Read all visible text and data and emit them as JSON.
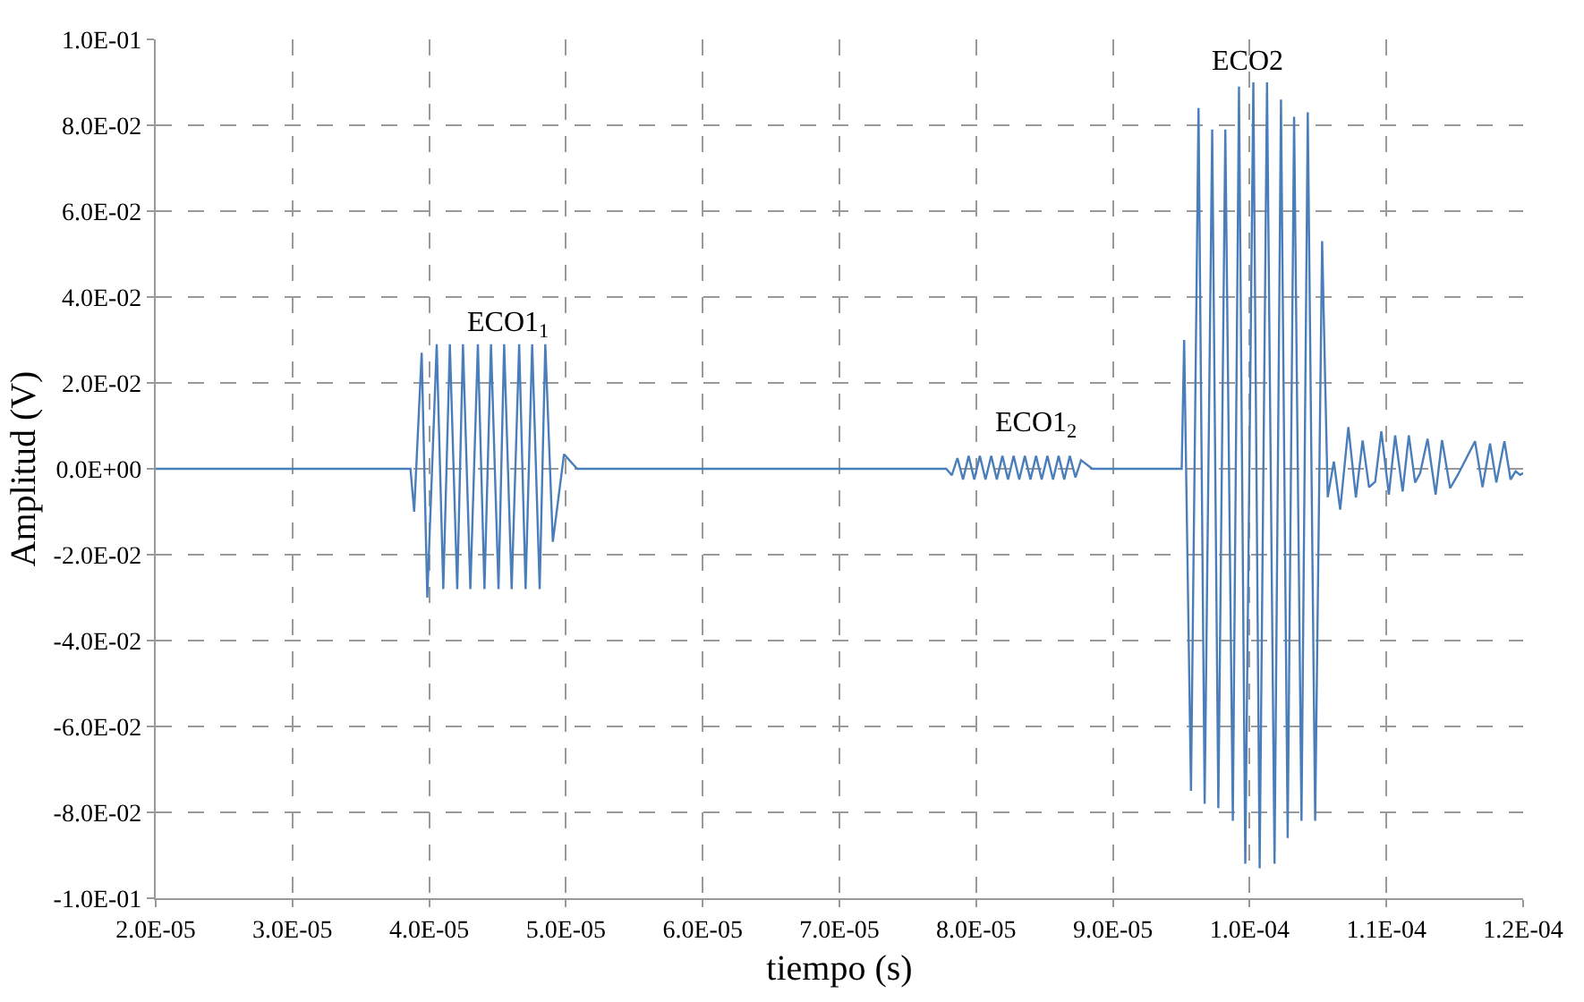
{
  "chart_data": {
    "type": "line",
    "xlabel": "tiempo (s)",
    "ylabel": "Amplitud (V)",
    "xlim": [
      2e-05,
      0.00012
    ],
    "xticks": [
      {
        "value": 2e-05,
        "label": "2.0E-05"
      },
      {
        "value": 3e-05,
        "label": "3.0E-05"
      },
      {
        "value": 4e-05,
        "label": "4.0E-05"
      },
      {
        "value": 5e-05,
        "label": "5.0E-05"
      },
      {
        "value": 6e-05,
        "label": "6.0E-05"
      },
      {
        "value": 7e-05,
        "label": "7.0E-05"
      },
      {
        "value": 8e-05,
        "label": "8.0E-05"
      },
      {
        "value": 9e-05,
        "label": "9.0E-05"
      },
      {
        "value": 0.0001,
        "label": "1.0E-04"
      },
      {
        "value": 0.00011,
        "label": "1.1E-04"
      },
      {
        "value": 0.00012,
        "label": "1.2E-04"
      }
    ],
    "ylim": [
      -0.1,
      0.1
    ],
    "yticks": [
      {
        "value": -0.1,
        "label": "-1.0E-01"
      },
      {
        "value": -0.08,
        "label": "-8.0E-02"
      },
      {
        "value": -0.06,
        "label": "-6.0E-02"
      },
      {
        "value": -0.04,
        "label": "-4.0E-02"
      },
      {
        "value": -0.02,
        "label": "-2.0E-02"
      },
      {
        "value": 0,
        "label": "0.0E+00"
      },
      {
        "value": 0.02,
        "label": "2.0E-02"
      },
      {
        "value": 0.04,
        "label": "4.0E-02"
      },
      {
        "value": 0.06,
        "label": "6.0E-02"
      },
      {
        "value": 0.08,
        "label": "8.0E-02"
      },
      {
        "value": 0.1,
        "label": "1.0E-01"
      }
    ],
    "grid": true,
    "marker": "none",
    "line_style": "solid",
    "annotations": [
      "ECO1$_{1}$",
      "ECO1$_{2}$",
      "ECO2"
    ],
    "series": [
      {
        "color": "#4a7ebb",
        "x": [
          2e-05,
          3.863e-05,
          3.89e-05,
          3.945e-05,
          3.986e-05,
          4.055e-05,
          4.103e-05,
          4.151e-05,
          4.205e-05,
          4.247e-05,
          4.301e-05,
          4.356e-05,
          4.404e-05,
          4.452e-05,
          4.507e-05,
          4.548e-05,
          4.603e-05,
          4.658e-05,
          4.705e-05,
          4.753e-05,
          4.808e-05,
          4.849e-05,
          4.904e-05,
          4.986e-05,
          5.082e-05,
          7.781e-05,
          7.822e-05,
          7.863e-05,
          7.904e-05,
          7.945e-05,
          7.986e-05,
          8.027e-05,
          8.068e-05,
          8.11e-05,
          8.151e-05,
          8.192e-05,
          8.233e-05,
          8.274e-05,
          8.315e-05,
          8.356e-05,
          8.397e-05,
          8.438e-05,
          8.479e-05,
          8.521e-05,
          8.562e-05,
          8.603e-05,
          8.644e-05,
          8.685e-05,
          8.726e-05,
          8.767e-05,
          8.849e-05,
          9.503e-05,
          9.521e-05,
          9.571e-05,
          9.626e-05,
          9.671e-05,
          9.726e-05,
          9.771e-05,
          9.822e-05,
          9.877e-05,
          9.922e-05,
          9.968e-05,
          0.00010027,
          0.00010073,
          0.00010127,
          0.00010182,
          0.00010229,
          0.00010278,
          0.00010325,
          0.00010379,
          0.00010425,
          0.00010479,
          0.0001053,
          0.00010571,
          0.00010616,
          0.00010662,
          0.00010722,
          0.00010777,
          0.00010826,
          0.00010873,
          0.00010918,
          0.00010963,
          0.00011018,
          0.00011064,
          0.00011119,
          0.00011164,
          0.0001121,
          0.00011247,
          0.00011301,
          0.0001136,
          0.00011407,
          0.00011466,
          0.00011521,
          0.00011648,
          0.00011703,
          0.00011758,
          0.00011804,
          0.00011863,
          0.00011908,
          0.00011945,
          0.00011977,
          0.00012
        ],
        "values": [
          0,
          0,
          -0.01,
          0.027,
          -0.03,
          0.029,
          -0.028,
          0.029,
          -0.028,
          0.029,
          -0.028,
          0.029,
          -0.028,
          0.029,
          -0.028,
          0.029,
          -0.028,
          0.029,
          -0.028,
          0.029,
          -0.028,
          0.029,
          -0.017,
          0.0034,
          0,
          0,
          -0.0015,
          0.0025,
          -0.0025,
          0.003,
          -0.0025,
          0.003,
          -0.0025,
          0.003,
          -0.0025,
          0.003,
          -0.0025,
          0.003,
          -0.0025,
          0.003,
          -0.0025,
          0.003,
          -0.0025,
          0.003,
          -0.0025,
          0.003,
          -0.0025,
          0.003,
          -0.002,
          0.002,
          0,
          0,
          0.03,
          -0.075,
          0.084,
          -0.078,
          0.079,
          -0.079,
          0.079,
          -0.082,
          0.089,
          -0.092,
          0.09,
          -0.093,
          0.09,
          -0.092,
          0.086,
          -0.086,
          0.082,
          -0.082,
          0.083,
          -0.082,
          0.053,
          -0.0066,
          0.0017,
          -0.0095,
          0.0097,
          -0.0067,
          0.0066,
          -0.0043,
          -0.003,
          0.0087,
          -0.006,
          0.0078,
          -0.0053,
          0.0078,
          -0.0032,
          -0.001,
          0.007,
          -0.006,
          0.0067,
          -0.0045,
          -0.0015,
          0.0064,
          -0.0043,
          0.0059,
          -0.0032,
          0.0064,
          -0.0025,
          -0.0006,
          -0.0014,
          -0.001
        ]
      }
    ]
  }
}
